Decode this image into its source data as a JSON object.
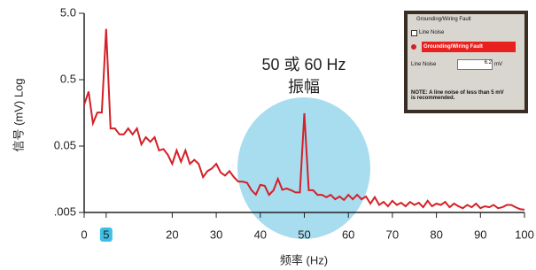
{
  "chart_data": {
    "type": "line",
    "x_label": "频率 (Hz)",
    "y_label": "信号 (mV) Log",
    "annotation": [
      "50 或 60 Hz",
      "振幅"
    ],
    "x": [
      0,
      1,
      2,
      3,
      4,
      5,
      6,
      7,
      8,
      9,
      10,
      11,
      12,
      13,
      14,
      15,
      16,
      17,
      18,
      19,
      20,
      21,
      22,
      23,
      24,
      25,
      26,
      27,
      28,
      29,
      30,
      31,
      32,
      33,
      34,
      35,
      36,
      37,
      38,
      39,
      40,
      41,
      42,
      43,
      44,
      45,
      46,
      47,
      48,
      49,
      50,
      51,
      52,
      53,
      54,
      55,
      56,
      57,
      58,
      59,
      60,
      61,
      62,
      63,
      64,
      65,
      66,
      67,
      68,
      69,
      70,
      71,
      72,
      73,
      74,
      75,
      76,
      77,
      78,
      79,
      80,
      81,
      82,
      83,
      84,
      85,
      86,
      87,
      88,
      89,
      90,
      91,
      92,
      93,
      94,
      95,
      96,
      97,
      98,
      99,
      100
    ],
    "values": [
      0.21,
      0.33,
      0.11,
      0.16,
      0.16,
      2.9,
      0.092,
      0.092,
      0.075,
      0.075,
      0.092,
      0.075,
      0.092,
      0.053,
      0.068,
      0.058,
      0.068,
      0.043,
      0.045,
      0.037,
      0.027,
      0.043,
      0.029,
      0.043,
      0.027,
      0.031,
      0.027,
      0.017,
      0.021,
      0.023,
      0.027,
      0.02,
      0.018,
      0.021,
      0.017,
      0.0146,
      0.0146,
      0.014,
      0.0108,
      0.0093,
      0.013,
      0.0126,
      0.0092,
      0.0108,
      0.016,
      0.011,
      0.0115,
      0.0108,
      0.01,
      0.01,
      0.156,
      0.0108,
      0.0108,
      0.0092,
      0.0092,
      0.0085,
      0.0092,
      0.0079,
      0.0087,
      0.0077,
      0.0092,
      0.0079,
      0.0092,
      0.0079,
      0.0087,
      0.0068,
      0.0085,
      0.0065,
      0.0072,
      0.0062,
      0.0075,
      0.0065,
      0.007,
      0.0062,
      0.0072,
      0.0065,
      0.007,
      0.006,
      0.0075,
      0.0062,
      0.0068,
      0.0065,
      0.0072,
      0.006,
      0.0068,
      0.0062,
      0.0058,
      0.0065,
      0.006,
      0.0068,
      0.0058,
      0.0062,
      0.006,
      0.0065,
      0.0058,
      0.006,
      0.0065,
      0.0065,
      0.006,
      0.0056,
      0.0055
    ],
    "color": "#d42027",
    "xlim": [
      0,
      100
    ],
    "xticks": [
      0,
      5,
      20,
      30,
      40,
      50,
      60,
      70,
      80,
      90,
      100
    ],
    "highlighted_xtick": 5,
    "ylim": [
      0.005,
      5
    ],
    "log_y": true,
    "yticks": [
      {
        "value": 0.005,
        "label": ".005"
      },
      0.05,
      0.5,
      {
        "value": 5,
        "label": "5.0"
      }
    ]
  },
  "inset": {
    "title": "Grounding/Wiring Fault",
    "checkbox_label": "Line Noise",
    "alert": "Grounding/Wiring Fault",
    "field_label": "Line Noise",
    "field_value": "6.2",
    "unit": "mV",
    "note": "NOTE: A line noise of less than 5 mV is recommended."
  }
}
